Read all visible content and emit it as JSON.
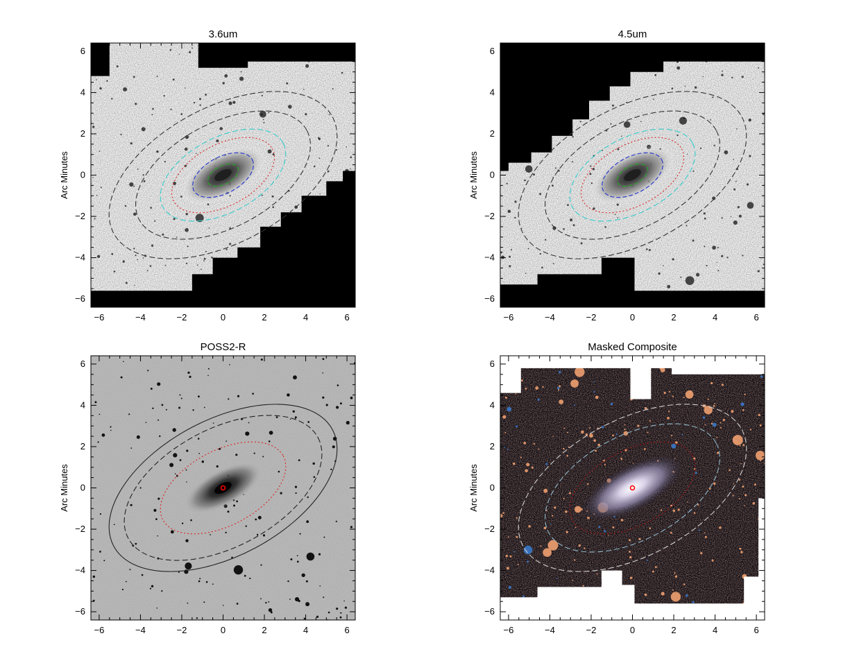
{
  "figure": {
    "panels": [
      {
        "id": "p36",
        "title": "3.6um",
        "ylabel": "Arc Minutes",
        "image_style": "inverted-grayscale",
        "mask_color": "#000000",
        "apertures": [
          {
            "a": 0.8,
            "ratio": 0.55,
            "color": "#22aa22",
            "dash": "6,3"
          },
          {
            "a": 1.6,
            "ratio": 0.55,
            "color": "#2233cc",
            "dash": "6,3"
          },
          {
            "a": 2.7,
            "ratio": 0.55,
            "color": "#dd2222",
            "dash": "2,3"
          },
          {
            "a": 3.3,
            "ratio": 0.55,
            "color": "#33cccc",
            "dash": "8,4"
          },
          {
            "a": 4.6,
            "ratio": 0.55,
            "color": "#333333",
            "dash": "8,4"
          },
          {
            "a": 6.0,
            "ratio": 0.55,
            "color": "#333333",
            "dash": "8,4"
          }
        ]
      },
      {
        "id": "p45",
        "title": "4.5um",
        "ylabel": "Arc Minutes",
        "image_style": "inverted-grayscale",
        "mask_color": "#000000",
        "apertures": [
          {
            "a": 0.8,
            "ratio": 0.55,
            "color": "#22aa22",
            "dash": "6,3"
          },
          {
            "a": 1.6,
            "ratio": 0.55,
            "color": "#2233cc",
            "dash": "6,3"
          },
          {
            "a": 2.7,
            "ratio": 0.55,
            "color": "#dd2222",
            "dash": "2,3"
          },
          {
            "a": 3.3,
            "ratio": 0.55,
            "color": "#33cccc",
            "dash": "8,4"
          },
          {
            "a": 4.6,
            "ratio": 0.55,
            "color": "#333333",
            "dash": "8,4"
          },
          {
            "a": 6.0,
            "ratio": 0.55,
            "color": "#333333",
            "dash": "8,4"
          }
        ]
      },
      {
        "id": "poss",
        "title": "POSS2-R",
        "ylabel": "Arc Minutes",
        "image_style": "grayscale",
        "mask_color": "",
        "apertures": [
          {
            "a": 3.3,
            "ratio": 0.55,
            "color": "#dd2222",
            "dash": "2,3"
          },
          {
            "a": 5.2,
            "ratio": 0.55,
            "color": "#222222",
            "dash": "8,4"
          },
          {
            "a": 6.0,
            "ratio": 0.55,
            "color": "#222222",
            "dash": ""
          }
        ]
      },
      {
        "id": "comp",
        "title": "Masked Composite",
        "ylabel": "Arc Minutes",
        "image_style": "color-composite",
        "mask_color": "#ffffff",
        "apertures": [
          {
            "a": 3.3,
            "ratio": 0.55,
            "color": "#aa1111",
            "dash": "2,3"
          },
          {
            "a": 4.6,
            "ratio": 0.55,
            "color": "#8fb8c8",
            "dash": "8,4"
          },
          {
            "a": 6.0,
            "ratio": 0.55,
            "color": "#d0d0d0",
            "dash": "8,4"
          }
        ]
      }
    ],
    "axes": {
      "xlim": [
        -6.4,
        6.4
      ],
      "ylim": [
        -6.4,
        6.4
      ],
      "xticks": [
        -6,
        -4,
        -2,
        0,
        2,
        4,
        6
      ],
      "yticks": [
        -6,
        -4,
        -2,
        0,
        2,
        4,
        6
      ],
      "tick_labels": [
        "−6",
        "−4",
        "−2",
        "0",
        "2",
        "4",
        "6"
      ]
    },
    "galaxy": {
      "center": [
        0,
        0
      ],
      "position_angle_deg": 28,
      "center_marker_color": "#ff0000"
    }
  }
}
